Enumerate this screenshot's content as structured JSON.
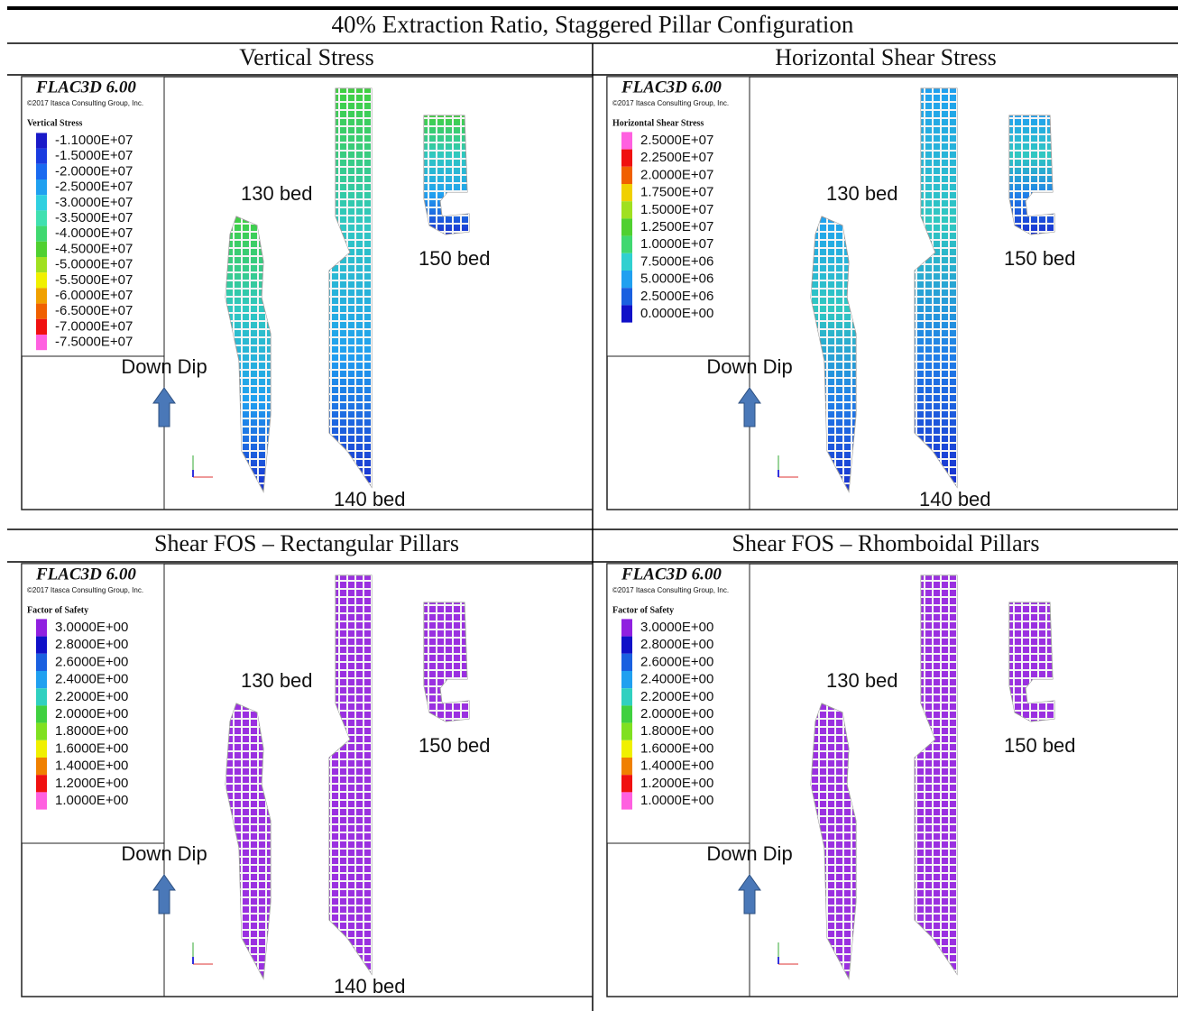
{
  "title": "40% Extraction Ratio, Staggered Pillar Configuration",
  "panels": [
    {
      "heading": "Vertical Stress",
      "software": "FLAC3D 6.00",
      "copyright": "©2017 Itasca Consulting Group, Inc.",
      "legend_title": "Vertical Stress",
      "legend": [
        {
          "label": "-1.1000E+07",
          "color": "#1a1ac8"
        },
        {
          "label": "-1.5000E+07",
          "color": "#1a3ce0"
        },
        {
          "label": "-2.0000E+07",
          "color": "#1a6af0"
        },
        {
          "label": "-2.5000E+07",
          "color": "#20a0f0"
        },
        {
          "label": "-3.0000E+07",
          "color": "#30d0e0"
        },
        {
          "label": "-3.5000E+07",
          "color": "#40e0b0"
        },
        {
          "label": "-4.0000E+07",
          "color": "#40d870"
        },
        {
          "label": "-4.5000E+07",
          "color": "#50d030"
        },
        {
          "label": "-5.0000E+07",
          "color": "#a0e020"
        },
        {
          "label": "-5.5000E+07",
          "color": "#f0f000"
        },
        {
          "label": "-6.0000E+07",
          "color": "#f0a000"
        },
        {
          "label": "-6.5000E+07",
          "color": "#f06000"
        },
        {
          "label": "-7.0000E+07",
          "color": "#f01010"
        },
        {
          "label": "-7.5000E+07",
          "color": "#ff60e0"
        }
      ],
      "labels": [
        "130 bed",
        "150 bed",
        "Down Dip",
        "140 bed"
      ]
    },
    {
      "heading": "Horizontal Shear Stress",
      "software": "FLAC3D 6.00",
      "copyright": "©2017 Itasca Consulting Group, Inc.",
      "legend_title": "Horizontal Shear Stress",
      "legend": [
        {
          "label": "2.5000E+07",
          "color": "#ff60e0"
        },
        {
          "label": "2.2500E+07",
          "color": "#f01010"
        },
        {
          "label": "2.0000E+07",
          "color": "#f06000"
        },
        {
          "label": "1.7500E+07",
          "color": "#f0d000"
        },
        {
          "label": "1.5000E+07",
          "color": "#a0e020"
        },
        {
          "label": "1.2500E+07",
          "color": "#50d030"
        },
        {
          "label": "1.0000E+07",
          "color": "#40d870"
        },
        {
          "label": "7.5000E+06",
          "color": "#30d0d0"
        },
        {
          "label": "5.0000E+06",
          "color": "#20a0f0"
        },
        {
          "label": "2.5000E+06",
          "color": "#1a60e0"
        },
        {
          "label": "0.0000E+00",
          "color": "#1010c8"
        }
      ],
      "labels": [
        "130 bed",
        "150 bed",
        "Down Dip",
        "140 bed"
      ]
    },
    {
      "heading": "Shear FOS – Rectangular Pillars",
      "software": "FLAC3D 6.00",
      "copyright": "©2017 Itasca Consulting Group, Inc.",
      "legend_title": "Factor of Safety",
      "legend": [
        {
          "label": "3.0000E+00",
          "color": "#9020e0"
        },
        {
          "label": "2.8000E+00",
          "color": "#1010c8"
        },
        {
          "label": "2.6000E+00",
          "color": "#1a60e0"
        },
        {
          "label": "2.4000E+00",
          "color": "#20a0f0"
        },
        {
          "label": "2.2000E+00",
          "color": "#30d0c0"
        },
        {
          "label": "2.0000E+00",
          "color": "#40d040"
        },
        {
          "label": "1.8000E+00",
          "color": "#80e020"
        },
        {
          "label": "1.6000E+00",
          "color": "#f0f000"
        },
        {
          "label": "1.4000E+00",
          "color": "#f08000"
        },
        {
          "label": "1.2000E+00",
          "color": "#f01010"
        },
        {
          "label": "1.0000E+00",
          "color": "#ff60e0"
        }
      ],
      "labels": [
        "130 bed",
        "150 bed",
        "Down Dip",
        "140 bed"
      ]
    },
    {
      "heading": "Shear FOS – Rhomboidal Pillars",
      "software": "FLAC3D 6.00",
      "copyright": "©2017 Itasca Consulting Group, Inc.",
      "legend_title": "Factor of Safety",
      "legend": [
        {
          "label": "3.0000E+00",
          "color": "#9020e0"
        },
        {
          "label": "2.8000E+00",
          "color": "#1010c8"
        },
        {
          "label": "2.6000E+00",
          "color": "#1a60e0"
        },
        {
          "label": "2.4000E+00",
          "color": "#20a0f0"
        },
        {
          "label": "2.2000E+00",
          "color": "#30d0c0"
        },
        {
          "label": "2.0000E+00",
          "color": "#40d040"
        },
        {
          "label": "1.8000E+00",
          "color": "#80e020"
        },
        {
          "label": "1.6000E+00",
          "color": "#f0f000"
        },
        {
          "label": "1.4000E+00",
          "color": "#f08000"
        },
        {
          "label": "1.2000E+00",
          "color": "#f01010"
        },
        {
          "label": "1.0000E+00",
          "color": "#ff60e0"
        }
      ],
      "labels": [
        "130 bed",
        "150 bed",
        "Down Dip"
      ]
    }
  ]
}
